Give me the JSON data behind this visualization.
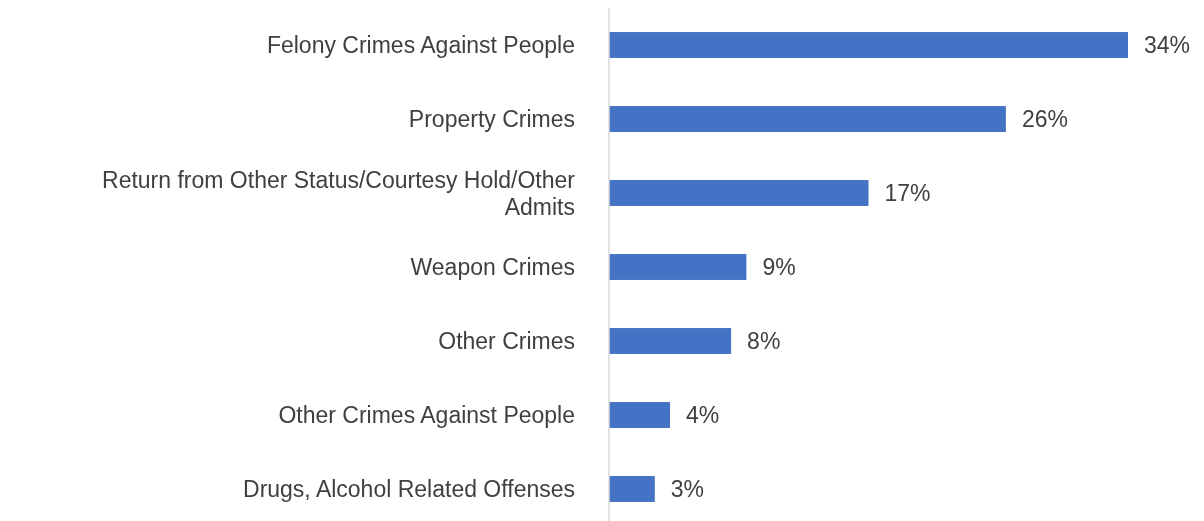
{
  "chart_data": {
    "type": "bar",
    "orientation": "horizontal",
    "categories": [
      "Felony Crimes Against People",
      "Property Crimes",
      "Return from Other Status/Courtesy Hold/Other Admits",
      "Weapon Crimes",
      "Other Crimes",
      "Other Crimes Against People",
      "Drugs, Alcohol Related Offenses"
    ],
    "values": [
      34,
      26,
      17,
      9,
      8,
      4,
      3
    ],
    "value_labels": [
      "34%",
      "26%",
      "17%",
      "9%",
      "8%",
      "4%",
      "3%"
    ],
    "color": "#4472c4"
  }
}
